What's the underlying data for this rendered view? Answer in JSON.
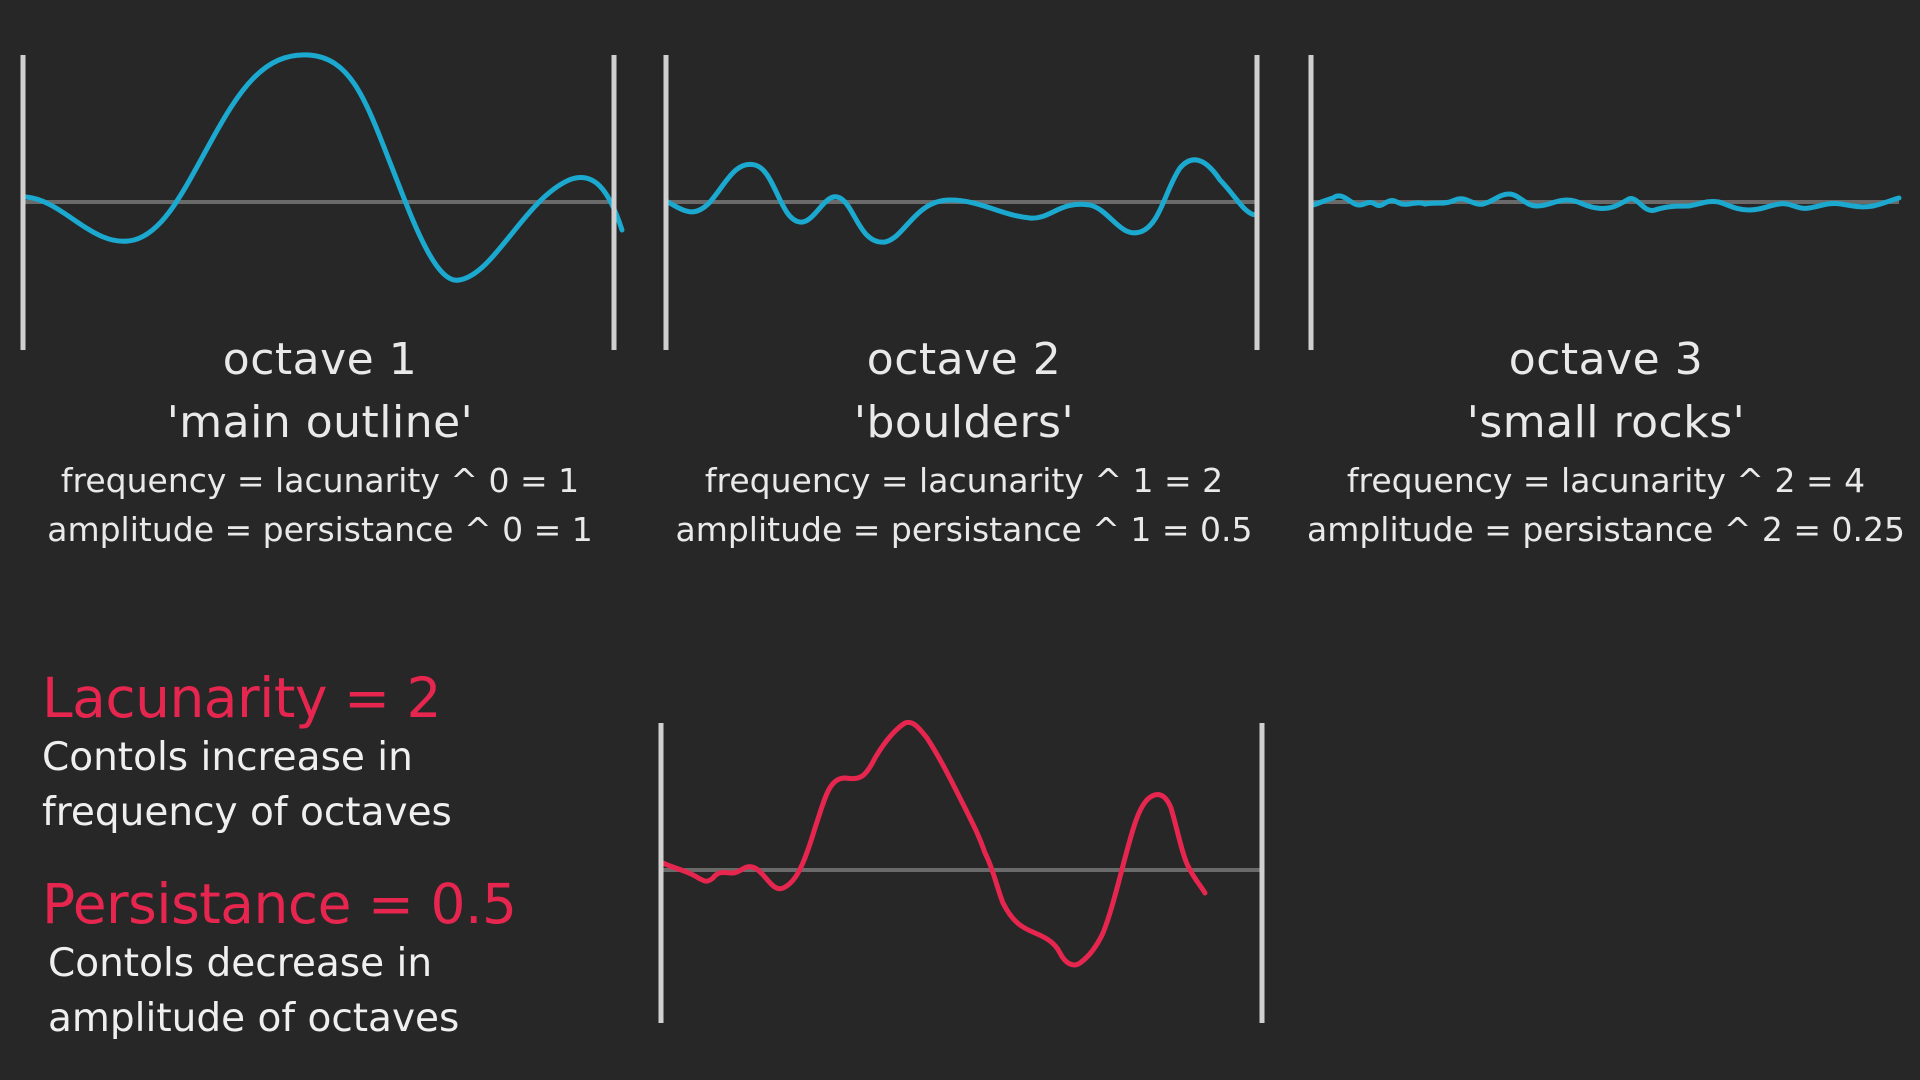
{
  "octaves": [
    {
      "title": "octave 1",
      "subtitle": "'main outline'",
      "frequency": "frequency = lacunarity ^ 0 = 1",
      "amplitude": "amplitude = persistance ^ 0 = 1"
    },
    {
      "title": "octave 2",
      "subtitle": "'boulders'",
      "frequency": "frequency = lacunarity ^ 1 = 2",
      "amplitude": "amplitude = persistance ^ 1 = 0.5"
    },
    {
      "title": "octave 3",
      "subtitle": "'small rocks'",
      "frequency": "frequency = lacunarity ^ 2 = 4",
      "amplitude": "amplitude = persistance ^ 2 = 0.25"
    }
  ],
  "lacunarity": {
    "heading": "Lacunarity = 2",
    "line1": "Contols increase in",
    "line2": "frequency of octaves"
  },
  "persistance": {
    "heading": "Persistance = 0.5",
    "line1": "Contols decrease in",
    "line2": "amplitude of octaves"
  },
  "colors": {
    "background": "#272727",
    "octave_curve": "#1ba9cf",
    "combined_curve": "#e6264f",
    "frame": "#d0d0d0",
    "baseline": "#6a6a6a",
    "text": "#e9e9e9",
    "accent": "#e6264f"
  }
}
